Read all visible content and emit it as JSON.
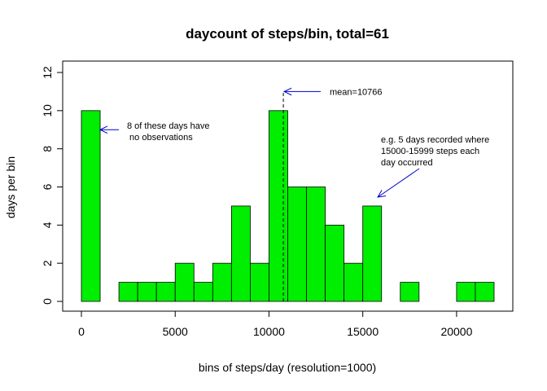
{
  "chart_data": {
    "type": "bar",
    "title": "daycount of steps/bin, total=61",
    "xlabel": "bins of steps/day (resolution=1000)",
    "ylabel": "days per bin",
    "xlim": [
      -1000,
      23000
    ],
    "ylim": [
      0,
      12.4
    ],
    "xticks": [
      0,
      5000,
      10000,
      15000,
      20000
    ],
    "yticks": [
      0,
      2,
      4,
      6,
      8,
      10,
      12
    ],
    "bin_width": 1000,
    "bars": [
      {
        "x0": 0,
        "x1": 1000,
        "count": 10
      },
      {
        "x0": 1000,
        "x1": 2000,
        "count": 0
      },
      {
        "x0": 2000,
        "x1": 3000,
        "count": 1
      },
      {
        "x0": 3000,
        "x1": 4000,
        "count": 1
      },
      {
        "x0": 4000,
        "x1": 5000,
        "count": 1
      },
      {
        "x0": 5000,
        "x1": 6000,
        "count": 2
      },
      {
        "x0": 6000,
        "x1": 7000,
        "count": 1
      },
      {
        "x0": 7000,
        "x1": 8000,
        "count": 2
      },
      {
        "x0": 8000,
        "x1": 9000,
        "count": 5
      },
      {
        "x0": 9000,
        "x1": 10000,
        "count": 2
      },
      {
        "x0": 10000,
        "x1": 11000,
        "count": 10
      },
      {
        "x0": 11000,
        "x1": 12000,
        "count": 6
      },
      {
        "x0": 12000,
        "x1": 13000,
        "count": 6
      },
      {
        "x0": 13000,
        "x1": 14000,
        "count": 4
      },
      {
        "x0": 14000,
        "x1": 15000,
        "count": 2
      },
      {
        "x0": 15000,
        "x1": 16000,
        "count": 5
      },
      {
        "x0": 16000,
        "x1": 17000,
        "count": 0
      },
      {
        "x0": 17000,
        "x1": 18000,
        "count": 1
      },
      {
        "x0": 18000,
        "x1": 19000,
        "count": 0
      },
      {
        "x0": 19000,
        "x1": 20000,
        "count": 0
      },
      {
        "x0": 20000,
        "x1": 21000,
        "count": 1
      },
      {
        "x0": 21000,
        "x1": 22000,
        "count": 1
      }
    ],
    "bar_color": "#00ee00",
    "bar_edge_color": "#000000",
    "mean": 10766,
    "mean_label": "mean=10766",
    "annotations": [
      {
        "lines": [
          "8 of these days have",
          " no observations"
        ],
        "arrow_to": [
          1000,
          9
        ]
      },
      {
        "lines": [
          "e.g. 5 days recorded where",
          "15000-15999 steps each",
          "day occurred"
        ],
        "arrow_to": [
          15800,
          5.5
        ]
      }
    ],
    "arrow_color": "#0000cc",
    "grid": false,
    "legend": "none"
  }
}
